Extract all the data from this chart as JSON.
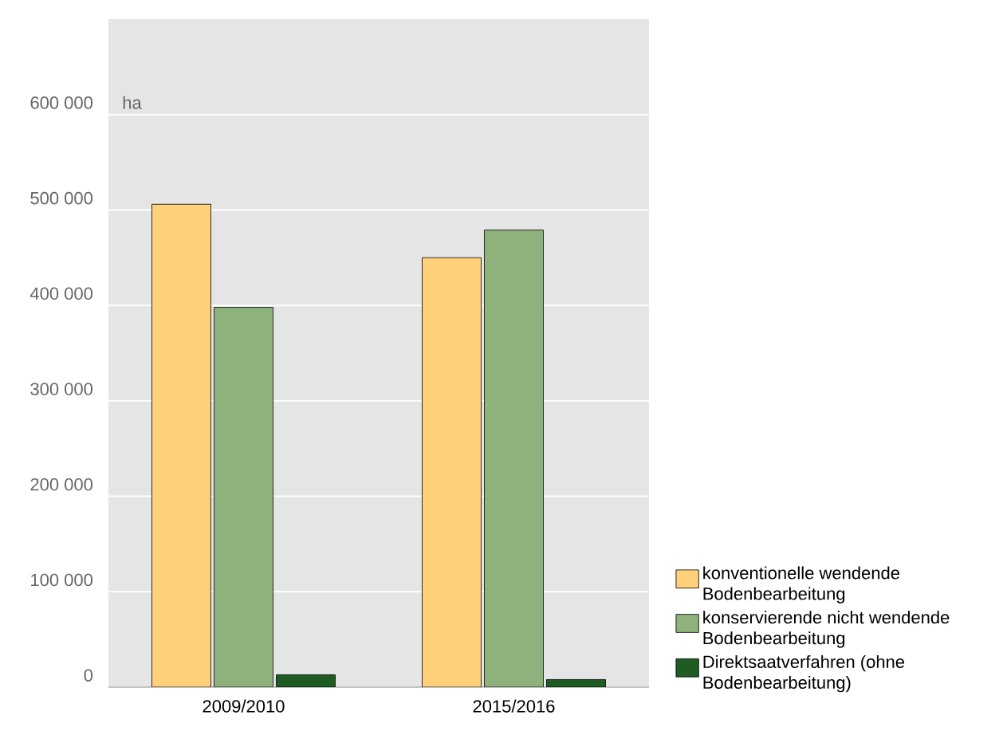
{
  "chart_data": {
    "type": "bar",
    "ylabel": "ha",
    "categories": [
      "2009/2010",
      "2015/2016"
    ],
    "series": [
      {
        "name": "konventionelle wendende Bodenbearbeitung",
        "color": "#fed07a",
        "values": [
          506000,
          450000
        ]
      },
      {
        "name": "konservierende nicht wendende Bodenbearbeitung",
        "color": "#8fb27c",
        "values": [
          398000,
          479000
        ]
      },
      {
        "name": "Direktsaatverfahren (ohne Bodenbearbeitung)",
        "color": "#1e5c23",
        "values": [
          13000,
          8000
        ]
      }
    ],
    "ylim": [
      0,
      700000
    ],
    "yticks": [
      0,
      {
        "value": 100000,
        "label": "100 000"
      },
      {
        "value": 200000,
        "label": "200 000"
      },
      {
        "value": 300000,
        "label": "300 000"
      },
      {
        "value": 400000,
        "label": "400 000"
      },
      {
        "value": 500000,
        "label": "500 000"
      },
      {
        "value": 600000,
        "label": "600 000"
      }
    ],
    "grid": "y",
    "legend": "right"
  }
}
